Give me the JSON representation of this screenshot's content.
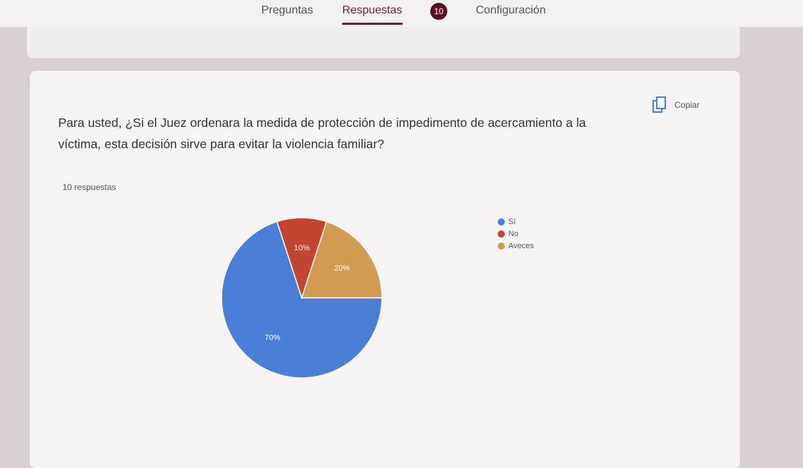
{
  "tabs": [
    "Preguntas",
    "Respuestas",
    "Configuración"
  ],
  "badge": "10",
  "copy_button": "Copiar",
  "question": "Para usted, ¿Si el Juez ordenara la medida de protección de impedimento de acercamiento a la víctima, esta decisión sirve para evitar la violencia familiar?",
  "response_count": "10 respuestas",
  "chart_data": {
    "type": "pie",
    "categories": [
      "Sí",
      "No",
      "Aveces"
    ],
    "values": [
      70,
      10,
      20
    ],
    "value_labels": [
      "70%",
      "10%",
      "20%"
    ],
    "colors": [
      "#4a7fd8",
      "#c4452f",
      "#d39a52"
    ],
    "legend": "right"
  }
}
